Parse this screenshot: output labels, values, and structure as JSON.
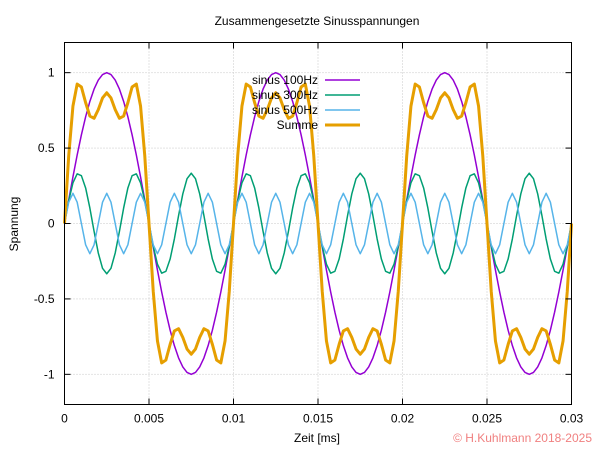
{
  "chart_data": {
    "type": "line",
    "title": "Zusammengesetzte Sinusspannungen",
    "xlabel": "Zeit [ms]",
    "ylabel": "Spannung",
    "xlim": [
      0,
      0.03
    ],
    "ylim": [
      -1.2,
      1.2
    ],
    "xticks": [
      0,
      0.005,
      0.01,
      0.015,
      0.02,
      0.025,
      0.03
    ],
    "xtick_labels": [
      "0",
      "0.005",
      "0.01",
      "0.015",
      "0.02",
      "0.025",
      "0.03"
    ],
    "yticks": [
      -1,
      -0.5,
      0,
      0.5,
      1
    ],
    "ytick_labels": [
      "-1",
      "-0.5",
      "0",
      "0.5",
      "1"
    ],
    "grid": true,
    "legend_position": "top-center",
    "series": [
      {
        "name": "sinus 100Hz",
        "frequency": 100,
        "amplitude": 1,
        "color": "#9400d3"
      },
      {
        "name": "sinus 300Hz",
        "frequency": 300,
        "amplitude": 0.3333,
        "color": "#009e73"
      },
      {
        "name": "sinus 500Hz",
        "frequency": 500,
        "amplitude": 0.2,
        "color": "#56b4e9"
      },
      {
        "name": "Summe",
        "frequency": null,
        "amplitude": null,
        "color": "#e69f00",
        "sum_of": [
          "sinus 100Hz",
          "sinus 300Hz",
          "sinus 500Hz"
        ]
      }
    ],
    "sample_step": 0.00025
  },
  "credit": "© H.Kuhlmann 2018-2025",
  "colors": {
    "credit": "#f08080",
    "grid": "#c8c8c8",
    "frame": "#000000"
  }
}
